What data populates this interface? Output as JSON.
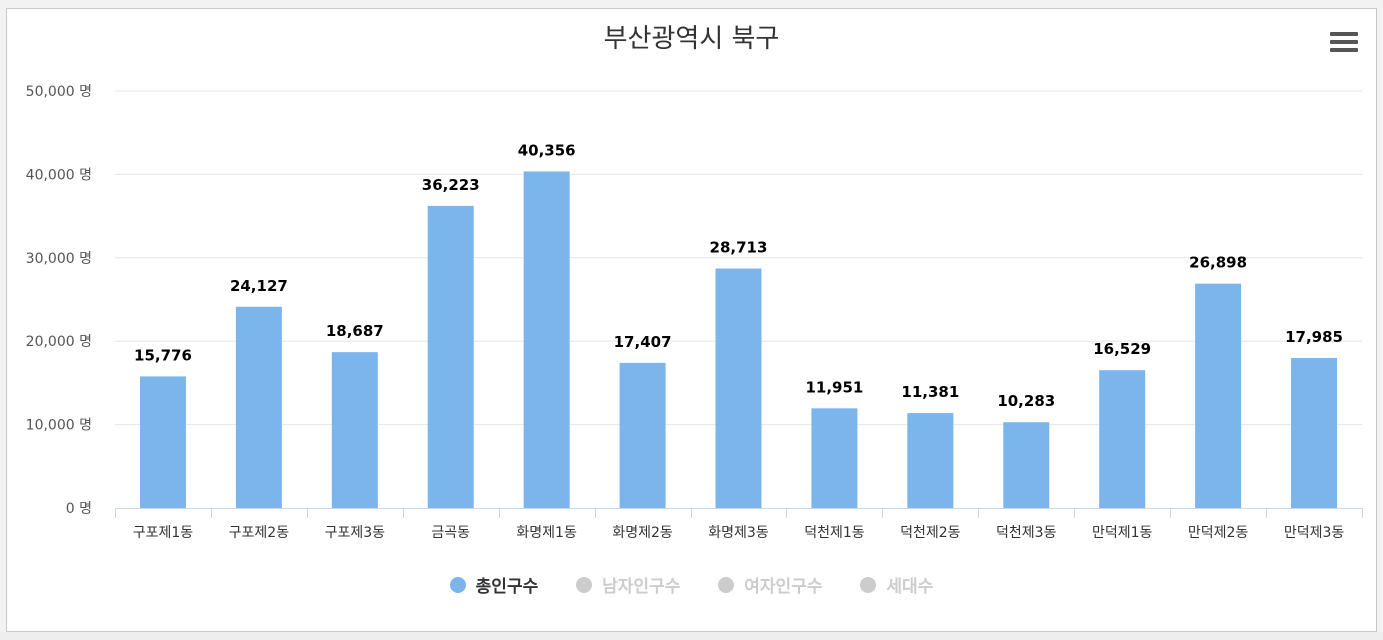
{
  "chart_title": "부산광역시 북구",
  "menu_icon": "hamburger-menu-icon",
  "colors": {
    "bar": "#7cb5ec",
    "inactive": "#cccccc",
    "active_text": "#333333",
    "inactive_text": "#cccccc",
    "grid": "#e6e6e6",
    "axis_text": "#555555"
  },
  "chart_data": {
    "type": "bar",
    "title": "부산광역시 북구",
    "categories": [
      "구포제1동",
      "구포제2동",
      "구포제3동",
      "금곡동",
      "화명제1동",
      "화명제2동",
      "화명제3동",
      "덕천제1동",
      "덕천제2동",
      "덕천제3동",
      "만덕제1동",
      "만덕제2동",
      "만덕제3동"
    ],
    "series": [
      {
        "name": "총인구수",
        "values": [
          15776,
          24127,
          18687,
          36223,
          40356,
          17407,
          28713,
          11951,
          11381,
          10283,
          16529,
          26898,
          17985
        ],
        "visible": true
      }
    ],
    "value_labels": [
      "15,776",
      "24,127",
      "18,687",
      "36,223",
      "40,356",
      "17,407",
      "28,713",
      "11,951",
      "11,381",
      "10,283",
      "16,529",
      "26,898",
      "17,985"
    ],
    "ylim": [
      0,
      50000
    ],
    "yticks": [
      0,
      10000,
      20000,
      30000,
      40000,
      50000
    ],
    "ytick_labels": [
      "0 명",
      "10,000 명",
      "20,000 명",
      "30,000 명",
      "40,000 명",
      "50,000 명"
    ],
    "grid": true,
    "legend_position": "bottom-center"
  },
  "legend": [
    {
      "label": "총인구수",
      "active": true
    },
    {
      "label": "남자인구수",
      "active": false
    },
    {
      "label": "여자인구수",
      "active": false
    },
    {
      "label": "세대수",
      "active": false
    }
  ]
}
